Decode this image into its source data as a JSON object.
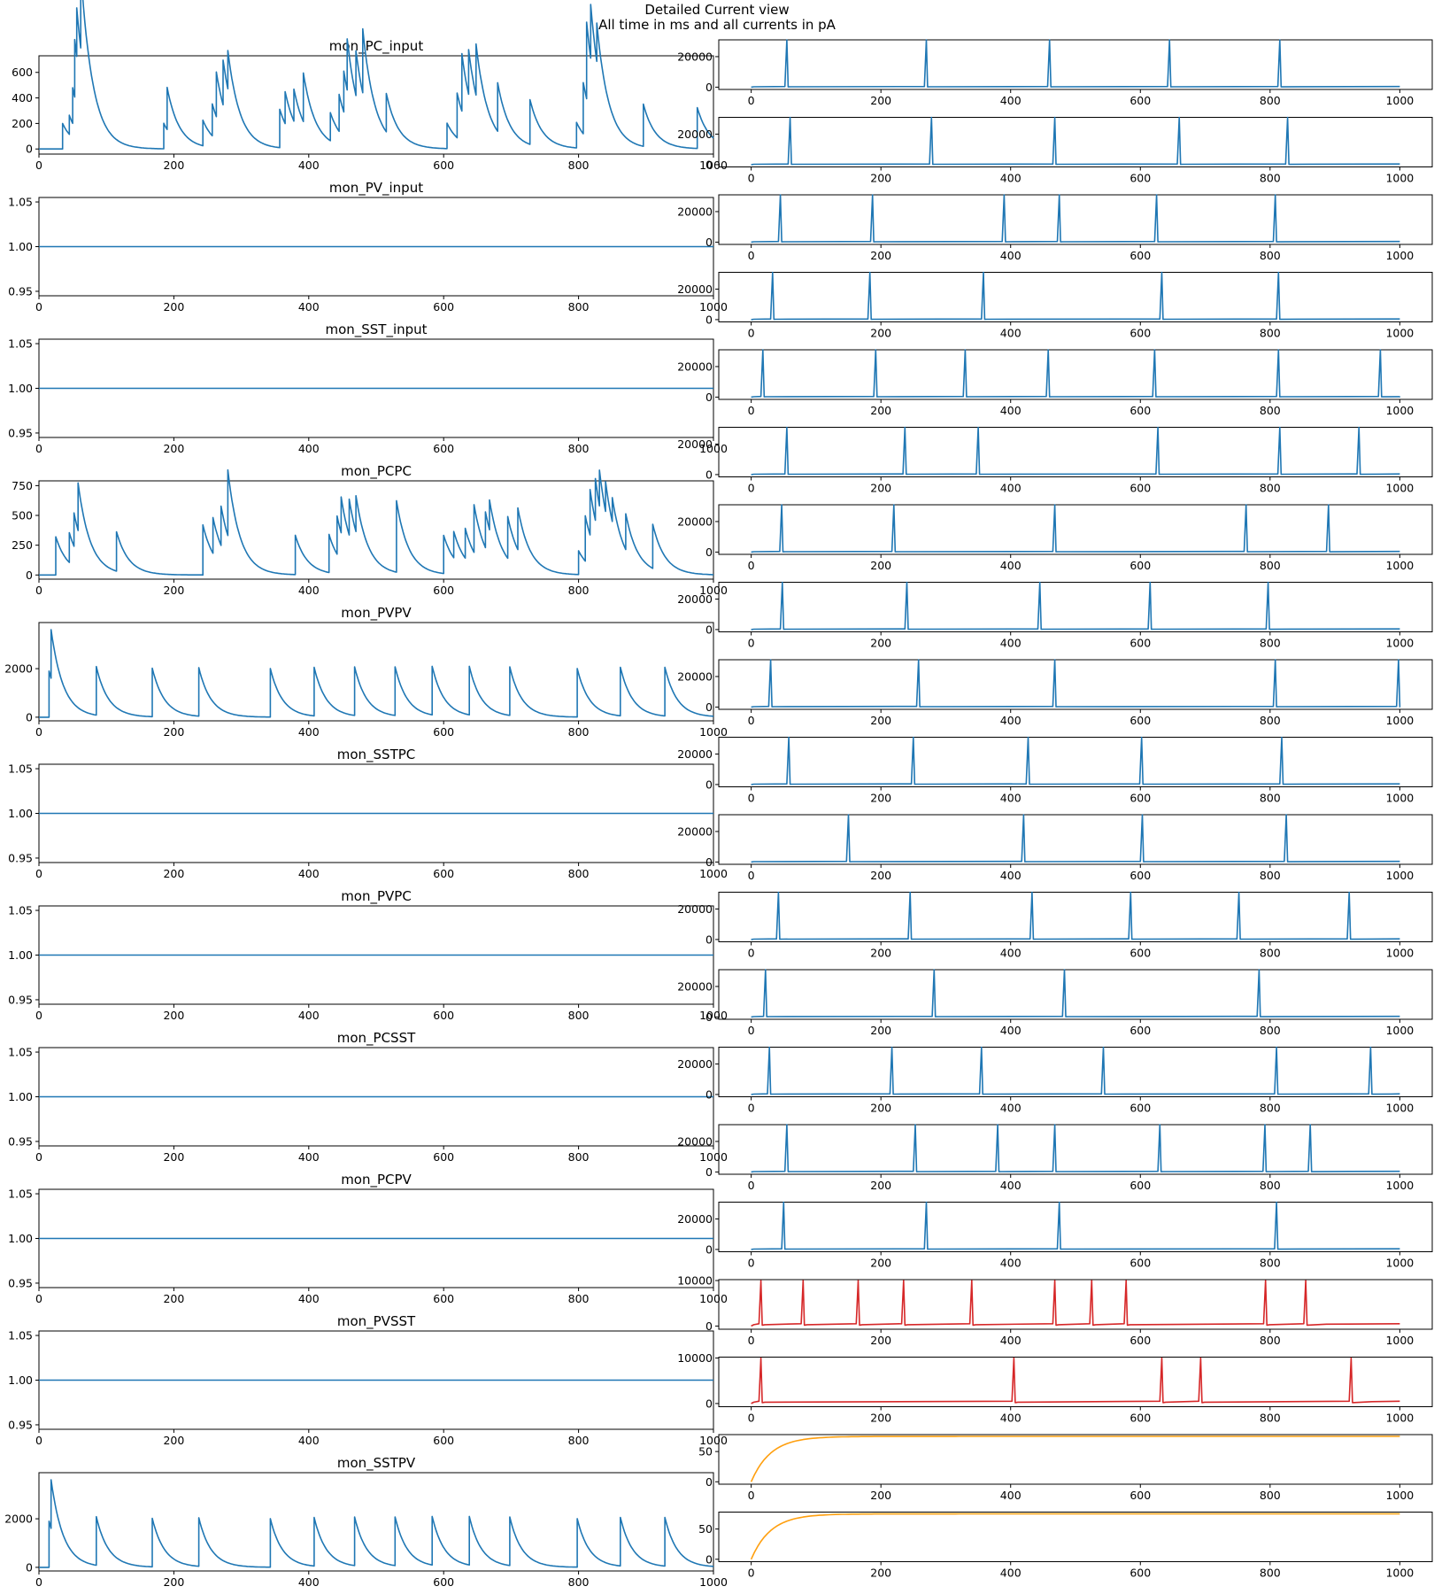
{
  "figure": {
    "title_line1": "Detailed Current view",
    "title_line2": "All time in ms and all currents in pA"
  },
  "colors": {
    "blue": "#1f77b4",
    "red": "#d62728",
    "orange": "#ff9f0e",
    "axes": "#000000"
  },
  "chart_data": [
    {
      "type": "line",
      "title": "mon_PC_input",
      "kind": "decay",
      "xlim": [
        0,
        1000
      ],
      "ylim": [
        -40,
        730
      ],
      "yticks": [
        0,
        200,
        400,
        600
      ],
      "color": "#1f77b4",
      "tau": 18,
      "events": [
        [
          35,
          200
        ],
        [
          45,
          150
        ],
        [
          50,
          280
        ],
        [
          53,
          450
        ],
        [
          56,
          380
        ],
        [
          62,
          600
        ],
        [
          185,
          200
        ],
        [
          190,
          330
        ],
        [
          243,
          200
        ],
        [
          257,
          250
        ],
        [
          263,
          350
        ],
        [
          273,
          350
        ],
        [
          280,
          300
        ],
        [
          357,
          300
        ],
        [
          365,
          250
        ],
        [
          378,
          250
        ],
        [
          392,
          380
        ],
        [
          432,
          220
        ],
        [
          445,
          290
        ],
        [
          452,
          320
        ],
        [
          457,
          400
        ],
        [
          470,
          350
        ],
        [
          480,
          500
        ],
        [
          515,
          300
        ],
        [
          605,
          200
        ],
        [
          620,
          350
        ],
        [
          627,
          450
        ],
        [
          637,
          350
        ],
        [
          648,
          400
        ],
        [
          680,
          380
        ],
        [
          728,
          350
        ],
        [
          797,
          200
        ],
        [
          807,
          400
        ],
        [
          812,
          600
        ],
        [
          818,
          420
        ],
        [
          827,
          300
        ],
        [
          896,
          330
        ],
        [
          976,
          320
        ]
      ],
      "series": [
        {
          "name": "",
          "values": []
        }
      ]
    },
    {
      "type": "line",
      "title": "mon_PV_input",
      "kind": "flat",
      "xlim": [
        0,
        1000
      ],
      "ylim": [
        0.945,
        1.055
      ],
      "yticks": [
        0.95,
        1.0,
        1.05
      ],
      "color": "#1f77b4",
      "value": 1.0
    },
    {
      "type": "line",
      "title": "mon_SST_input",
      "kind": "flat",
      "xlim": [
        0,
        1000
      ],
      "ylim": [
        0.945,
        1.055
      ],
      "yticks": [
        0.95,
        1.0,
        1.05
      ],
      "color": "#1f77b4",
      "value": 1.0
    },
    {
      "type": "line",
      "title": "mon_PCPC",
      "kind": "decay",
      "xlim": [
        0,
        1000
      ],
      "ylim": [
        -35,
        790
      ],
      "yticks": [
        0,
        250,
        500,
        750
      ],
      "color": "#1f77b4",
      "tau": 18,
      "events": [
        [
          25,
          320
        ],
        [
          45,
          250
        ],
        [
          52,
          280
        ],
        [
          58,
          400
        ],
        [
          115,
          330
        ],
        [
          243,
          420
        ],
        [
          258,
          300
        ],
        [
          270,
          330
        ],
        [
          280,
          550
        ],
        [
          380,
          330
        ],
        [
          430,
          320
        ],
        [
          442,
          320
        ],
        [
          448,
          300
        ],
        [
          460,
          300
        ],
        [
          470,
          300
        ],
        [
          530,
          600
        ],
        [
          600,
          320
        ],
        [
          615,
          220
        ],
        [
          632,
          250
        ],
        [
          645,
          400
        ],
        [
          662,
          300
        ],
        [
          668,
          250
        ],
        [
          695,
          350
        ],
        [
          710,
          350
        ],
        [
          800,
          200
        ],
        [
          810,
          380
        ],
        [
          817,
          380
        ],
        [
          825,
          350
        ],
        [
          831,
          300
        ],
        [
          840,
          250
        ],
        [
          850,
          200
        ],
        [
          870,
          300
        ],
        [
          910,
          370
        ]
      ]
    },
    {
      "type": "line",
      "title": "mon_PVPV",
      "kind": "decay",
      "xlim": [
        0,
        1000
      ],
      "ylim": [
        -150,
        3900
      ],
      "yticks": [
        0,
        2000
      ],
      "color": "#1f77b4",
      "tau": 18,
      "events": [
        [
          15,
          1900
        ],
        [
          18,
          2000
        ],
        [
          85,
          2000
        ],
        [
          168,
          2000
        ],
        [
          237,
          2000
        ],
        [
          343,
          2000
        ],
        [
          408,
          2000
        ],
        [
          468,
          2000
        ],
        [
          528,
          2000
        ],
        [
          583,
          2000
        ],
        [
          638,
          2000
        ],
        [
          698,
          2000
        ],
        [
          798,
          2000
        ],
        [
          862,
          2000
        ],
        [
          928,
          2000
        ]
      ]
    },
    {
      "type": "line",
      "title": "mon_SSTPC",
      "kind": "flat",
      "xlim": [
        0,
        1000
      ],
      "ylim": [
        0.945,
        1.055
      ],
      "yticks": [
        0.95,
        1.0,
        1.05
      ],
      "color": "#1f77b4",
      "value": 1.0
    },
    {
      "type": "line",
      "title": "mon_PVPC",
      "kind": "flat",
      "xlim": [
        0,
        1000
      ],
      "ylim": [
        0.945,
        1.055
      ],
      "yticks": [
        0.95,
        1.0,
        1.05
      ],
      "color": "#1f77b4",
      "value": 1.0
    },
    {
      "type": "line",
      "title": "mon_PCSST",
      "kind": "flat",
      "xlim": [
        0,
        1000
      ],
      "ylim": [
        0.945,
        1.055
      ],
      "yticks": [
        0.95,
        1.0,
        1.05
      ],
      "color": "#1f77b4",
      "value": 1.0
    },
    {
      "type": "line",
      "title": "mon_PCPV",
      "kind": "flat",
      "xlim": [
        0,
        1000
      ],
      "ylim": [
        0.945,
        1.055
      ],
      "yticks": [
        0.95,
        1.0,
        1.05
      ],
      "color": "#1f77b4",
      "value": 1.0
    },
    {
      "type": "line",
      "title": "mon_PVSST",
      "kind": "flat",
      "xlim": [
        0,
        1000
      ],
      "ylim": [
        0.945,
        1.055
      ],
      "yticks": [
        0.95,
        1.0,
        1.05
      ],
      "color": "#1f77b4",
      "value": 1.0
    },
    {
      "type": "line",
      "title": "mon_SSTPV",
      "kind": "decay",
      "xlim": [
        0,
        1000
      ],
      "ylim": [
        -150,
        3900
      ],
      "yticks": [
        0,
        2000
      ],
      "color": "#1f77b4",
      "tau": 18,
      "events": [
        [
          15,
          1900
        ],
        [
          18,
          2000
        ],
        [
          85,
          2000
        ],
        [
          168,
          2000
        ],
        [
          237,
          2000
        ],
        [
          343,
          2000
        ],
        [
          408,
          2000
        ],
        [
          468,
          2000
        ],
        [
          528,
          2000
        ],
        [
          583,
          2000
        ],
        [
          638,
          2000
        ],
        [
          698,
          2000
        ],
        [
          798,
          2000
        ],
        [
          862,
          2000
        ],
        [
          928,
          2000
        ]
      ]
    },
    {
      "type": "line",
      "title": "",
      "kind": "spikes",
      "xlim": [
        -50,
        1050
      ],
      "ylim": [
        -1500,
        31000
      ],
      "yticks": [
        0,
        20000
      ],
      "color": "#1f77b4",
      "base": 400,
      "peak": 31000,
      "spikes": [
        55,
        270,
        460,
        645,
        815
      ]
    },
    {
      "type": "line",
      "title": "",
      "kind": "spikes",
      "xlim": [
        -50,
        1050
      ],
      "ylim": [
        -1500,
        31000
      ],
      "yticks": [
        0,
        20000
      ],
      "color": "#1f77b4",
      "base": 400,
      "peak": 31000,
      "spikes": [
        60,
        278,
        468,
        660,
        827
      ]
    },
    {
      "type": "line",
      "title": "",
      "kind": "spikes",
      "xlim": [
        -50,
        1050
      ],
      "ylim": [
        -1500,
        31000
      ],
      "yticks": [
        0,
        20000
      ],
      "color": "#1f77b4",
      "base": 400,
      "peak": 31000,
      "spikes": [
        45,
        187,
        390,
        475,
        625,
        808
      ]
    },
    {
      "type": "line",
      "title": "",
      "kind": "spikes",
      "xlim": [
        -50,
        1050
      ],
      "ylim": [
        -1500,
        31000
      ],
      "yticks": [
        0,
        20000
      ],
      "color": "#1f77b4",
      "base": 400,
      "peak": 31000,
      "spikes": [
        33,
        183,
        358,
        633,
        813
      ]
    },
    {
      "type": "line",
      "title": "",
      "kind": "spikes",
      "xlim": [
        -50,
        1050
      ],
      "ylim": [
        -1500,
        31000
      ],
      "yticks": [
        0,
        20000
      ],
      "color": "#1f77b4",
      "base": 400,
      "peak": 31000,
      "spikes": [
        18,
        192,
        330,
        458,
        622,
        813,
        970
      ]
    },
    {
      "type": "line",
      "title": "",
      "kind": "spikes",
      "xlim": [
        -50,
        1050
      ],
      "ylim": [
        -1500,
        31000
      ],
      "yticks": [
        0,
        20000
      ],
      "color": "#1f77b4",
      "base": 400,
      "peak": 31000,
      "spikes": [
        55,
        237,
        350,
        627,
        815,
        937
      ]
    },
    {
      "type": "line",
      "title": "",
      "kind": "spikes",
      "xlim": [
        -50,
        1050
      ],
      "ylim": [
        -1500,
        31000
      ],
      "yticks": [
        0,
        20000
      ],
      "color": "#1f77b4",
      "base": 400,
      "peak": 31000,
      "spikes": [
        47,
        220,
        468,
        763,
        890
      ]
    },
    {
      "type": "line",
      "title": "",
      "kind": "spikes",
      "xlim": [
        -50,
        1050
      ],
      "ylim": [
        -1500,
        31000
      ],
      "yticks": [
        0,
        20000
      ],
      "color": "#1f77b4",
      "base": 400,
      "peak": 31000,
      "spikes": [
        48,
        240,
        445,
        615,
        797
      ]
    },
    {
      "type": "line",
      "title": "",
      "kind": "spikes",
      "xlim": [
        -50,
        1050
      ],
      "ylim": [
        -1500,
        31000
      ],
      "yticks": [
        0,
        20000
      ],
      "color": "#1f77b4",
      "base": 400,
      "peak": 31000,
      "spikes": [
        30,
        258,
        468,
        808,
        998
      ]
    },
    {
      "type": "line",
      "title": "",
      "kind": "spikes",
      "xlim": [
        -50,
        1050
      ],
      "ylim": [
        -1500,
        31000
      ],
      "yticks": [
        0,
        20000
      ],
      "color": "#1f77b4",
      "base": 400,
      "peak": 31000,
      "spikes": [
        58,
        250,
        427,
        602,
        818
      ]
    },
    {
      "type": "line",
      "title": "",
      "kind": "spikes",
      "xlim": [
        -50,
        1050
      ],
      "ylim": [
        -1500,
        31000
      ],
      "yticks": [
        0,
        20000
      ],
      "color": "#1f77b4",
      "base": 400,
      "peak": 31000,
      "spikes": [
        150,
        420,
        603,
        825
      ]
    },
    {
      "type": "line",
      "title": "",
      "kind": "spikes",
      "xlim": [
        -50,
        1050
      ],
      "ylim": [
        -1500,
        31000
      ],
      "yticks": [
        0,
        20000
      ],
      "color": "#1f77b4",
      "base": 400,
      "peak": 31000,
      "spikes": [
        42,
        245,
        433,
        585,
        752,
        922
      ]
    },
    {
      "type": "line",
      "title": "",
      "kind": "spikes",
      "xlim": [
        -50,
        1050
      ],
      "ylim": [
        -1500,
        31000
      ],
      "yticks": [
        0,
        20000
      ],
      "color": "#1f77b4",
      "base": 400,
      "peak": 31000,
      "spikes": [
        22,
        282,
        483,
        783
      ]
    },
    {
      "type": "line",
      "title": "",
      "kind": "spikes",
      "xlim": [
        -50,
        1050
      ],
      "ylim": [
        -1500,
        31000
      ],
      "yticks": [
        0,
        20000
      ],
      "color": "#1f77b4",
      "base": 400,
      "peak": 31000,
      "spikes": [
        28,
        217,
        355,
        543,
        810,
        955
      ]
    },
    {
      "type": "line",
      "title": "",
      "kind": "spikes",
      "xlim": [
        -50,
        1050
      ],
      "ylim": [
        -1500,
        31000
      ],
      "yticks": [
        0,
        20000
      ],
      "color": "#1f77b4",
      "base": 400,
      "peak": 31000,
      "spikes": [
        55,
        253,
        380,
        468,
        630,
        792,
        862
      ]
    },
    {
      "type": "line",
      "title": "",
      "kind": "spikes",
      "xlim": [
        -50,
        1050
      ],
      "ylim": [
        -1500,
        31000
      ],
      "yticks": [
        0,
        20000
      ],
      "color": "#1f77b4",
      "base": 400,
      "peak": 31000,
      "spikes": [
        50,
        270,
        475,
        810
      ]
    },
    {
      "type": "line",
      "title": "",
      "kind": "spikes",
      "xlim": [
        -50,
        1050
      ],
      "ylim": [
        -700,
        10200
      ],
      "yticks": [
        0,
        10000
      ],
      "color": "#d62728",
      "base": 500,
      "peak": 10000,
      "spikes": [
        15,
        80,
        165,
        235,
        340,
        468,
        525,
        578,
        793,
        855
      ]
    },
    {
      "type": "line",
      "title": "",
      "kind": "spikes",
      "xlim": [
        -50,
        1050
      ],
      "ylim": [
        -700,
        10200
      ],
      "yticks": [
        0,
        10000
      ],
      "color": "#d62728",
      "base": 500,
      "peak": 10000,
      "spikes": [
        15,
        405,
        633,
        693,
        925
      ]
    },
    {
      "type": "line",
      "title": "",
      "kind": "rise",
      "xlim": [
        -50,
        1050
      ],
      "ylim": [
        -4,
        78
      ],
      "yticks": [
        0,
        50
      ],
      "color": "#ff9f0e",
      "vmax": 75,
      "tau": 30
    },
    {
      "type": "line",
      "title": "",
      "kind": "rise",
      "xlim": [
        -50,
        1050
      ],
      "ylim": [
        -4,
        78
      ],
      "yticks": [
        0,
        50
      ],
      "color": "#ff9f0e",
      "vmax": 75,
      "tau": 30
    }
  ]
}
